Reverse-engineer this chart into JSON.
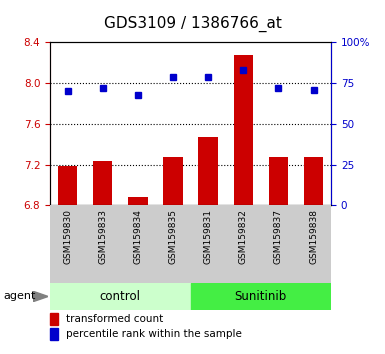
{
  "title": "GDS3109 / 1386766_at",
  "samples": [
    "GSM159830",
    "GSM159833",
    "GSM159834",
    "GSM159835",
    "GSM159831",
    "GSM159832",
    "GSM159837",
    "GSM159838"
  ],
  "groups": [
    "control",
    "control",
    "control",
    "control",
    "Sunitinib",
    "Sunitinib",
    "Sunitinib",
    "Sunitinib"
  ],
  "transformed_count": [
    7.19,
    7.24,
    6.88,
    7.27,
    7.47,
    8.28,
    7.27,
    7.27
  ],
  "percentile_rank": [
    70,
    72,
    68,
    79,
    79,
    83,
    72,
    71
  ],
  "ymin": 6.8,
  "ymax": 8.4,
  "yticks": [
    6.8,
    7.2,
    7.6,
    8.0,
    8.4
  ],
  "y2ticks": [
    0,
    25,
    50,
    75,
    100
  ],
  "bar_color": "#cc0000",
  "dot_color": "#0000cc",
  "control_bg_light": "#ccffcc",
  "sunitinib_bg_dark": "#44ee44",
  "xlabel_bg": "#cccccc",
  "legend_bar_label": "transformed count",
  "legend_dot_label": "percentile rank within the sample",
  "group_label_left": "control",
  "group_label_right": "Sunitinib",
  "agent_label": "agent",
  "title_fontsize": 11,
  "tick_fontsize": 7.5,
  "label_fontsize": 7.5,
  "sample_fontsize": 6.5
}
